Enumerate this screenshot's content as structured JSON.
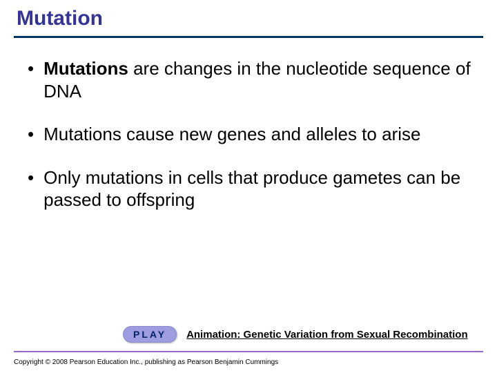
{
  "title": "Mutation",
  "title_color": "#333399",
  "hr_color": "#003366",
  "bullets": [
    {
      "bold": "Mutations",
      "rest": " are changes in the nucleotide sequence of DNA"
    },
    {
      "bold": "",
      "rest": "Mutations cause new genes and alleles to arise"
    },
    {
      "bold": "",
      "rest": "Only mutations in cells that produce gametes can be passed to offspring"
    }
  ],
  "play": {
    "button_label": "PLAY",
    "caption": "Animation: Genetic Variation from Sexual Recombination",
    "button_bg": "#9d9de0",
    "button_fg": "#002266"
  },
  "footer_line_color": "#9966cc",
  "copyright": "Copyright © 2008 Pearson Education Inc., publishing as Pearson Benjamin Cummings",
  "body_font_size": 26,
  "background_color": "#ffffff"
}
